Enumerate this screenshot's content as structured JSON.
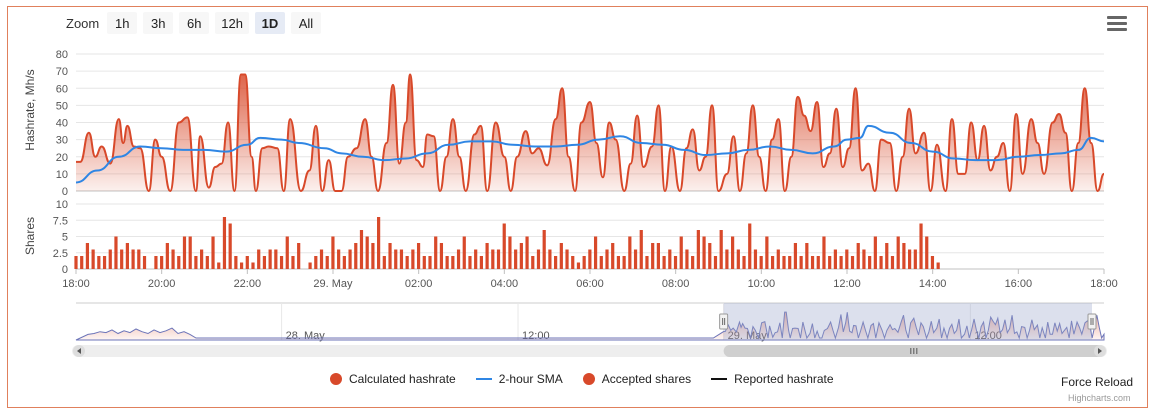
{
  "zoom": {
    "label": "Zoom",
    "buttons": [
      "1h",
      "3h",
      "6h",
      "12h",
      "1D",
      "All"
    ],
    "active": "1D"
  },
  "legend": [
    {
      "name": "Calculated hashrate",
      "marker": "dot",
      "color": "#d8492a"
    },
    {
      "name": "2-hour SMA",
      "marker": "line",
      "color": "#2f86e4"
    },
    {
      "name": "Accepted shares",
      "marker": "dot",
      "color": "#d8492a"
    },
    {
      "name": "Reported hashrate",
      "marker": "line",
      "color": "#111111"
    }
  ],
  "force_reload": "Force Reload",
  "credits": "Highcharts.com",
  "colors": {
    "hashrate": "#d8492a",
    "sma": "#2f86e4",
    "shares": "#d8492a",
    "navigator_fill": "#9aa6cc",
    "navigator_line": "#6c74b8",
    "grid": "#e6e6e6",
    "frame": "#e0805c"
  },
  "chart_data": [
    {
      "type": "area",
      "ylabel": "Hashrate, Mh/s",
      "ylim": [
        0,
        80
      ],
      "yticks": [
        "0",
        "10",
        "20",
        "30",
        "40",
        "50",
        "60",
        "70",
        "80"
      ],
      "grid": true,
      "x_range": [
        18,
        42
      ],
      "xticks": [
        {
          "x": 18,
          "label": "18:00"
        },
        {
          "x": 20,
          "label": "20:00"
        },
        {
          "x": 22,
          "label": "22:00"
        },
        {
          "x": 24,
          "label": "29. May"
        },
        {
          "x": 26,
          "label": "02:00"
        },
        {
          "x": 28,
          "label": "04:00"
        },
        {
          "x": 30,
          "label": "06:00"
        },
        {
          "x": 32,
          "label": "08:00"
        },
        {
          "x": 34,
          "label": "10:00"
        },
        {
          "x": 36,
          "label": "12:00"
        },
        {
          "x": 38,
          "label": "14:00"
        },
        {
          "x": 40,
          "label": "16:00"
        },
        {
          "x": 42,
          "label": "18:00"
        }
      ],
      "series": [
        {
          "name": "Calculated hashrate",
          "x": [
            18.0,
            18.1,
            18.3,
            18.45,
            18.6,
            18.8,
            19.0,
            19.1,
            19.2,
            19.35,
            19.5,
            19.7,
            19.85,
            20.0,
            20.2,
            20.4,
            20.6,
            20.8,
            20.9,
            21.1,
            21.25,
            21.4,
            21.55,
            21.7,
            21.85,
            21.95,
            22.1,
            22.2,
            22.35,
            22.5,
            22.7,
            22.85,
            23.0,
            23.25,
            23.45,
            23.6,
            23.75,
            23.9,
            24.05,
            24.2,
            24.35,
            24.55,
            24.75,
            24.9,
            25.05,
            25.25,
            25.4,
            25.55,
            25.7,
            25.8,
            25.95,
            26.1,
            26.2,
            26.35,
            26.5,
            26.65,
            26.8,
            26.95,
            27.1,
            27.3,
            27.45,
            27.6,
            27.8,
            28.0,
            28.15,
            28.3,
            28.5,
            28.65,
            28.8,
            29.0,
            29.2,
            29.35,
            29.5,
            29.65,
            29.8,
            30.0,
            30.15,
            30.3,
            30.45,
            30.6,
            30.8,
            30.95,
            31.1,
            31.25,
            31.45,
            31.6,
            31.75,
            31.9,
            32.1,
            32.25,
            32.4,
            32.55,
            32.7,
            32.85,
            33.0,
            33.2,
            33.35,
            33.5,
            33.65,
            33.8,
            33.95,
            34.1,
            34.25,
            34.4,
            34.55,
            34.7,
            34.85,
            35.0,
            35.15,
            35.3,
            35.45,
            35.6,
            35.75,
            35.9,
            36.05,
            36.2,
            36.35,
            36.5,
            36.65,
            36.8,
            37.0,
            37.15,
            37.3,
            37.45,
            37.6,
            37.8,
            37.95,
            38.1,
            38.3,
            38.45,
            38.6,
            38.75,
            38.9,
            39.05,
            39.2,
            39.35,
            39.5,
            39.65,
            39.8,
            39.95,
            40.1,
            40.3,
            40.45,
            40.6,
            40.8,
            40.95,
            41.1,
            41.25,
            41.4,
            41.55,
            41.7,
            41.85,
            42.0
          ],
          "values": [
            17,
            17,
            34,
            20,
            26,
            16,
            42,
            28,
            38,
            26,
            25,
            0,
            30,
            20,
            0,
            40,
            43,
            0,
            32,
            2,
            14,
            16,
            40,
            0,
            68,
            68,
            20,
            0,
            25,
            26,
            25,
            0,
            42,
            0,
            12,
            38,
            0,
            18,
            0,
            0,
            20,
            25,
            42,
            20,
            0,
            28,
            62,
            16,
            40,
            68,
            18,
            14,
            33,
            32,
            0,
            20,
            42,
            20,
            0,
            33,
            38,
            0,
            40,
            20,
            0,
            20,
            35,
            22,
            25,
            15,
            42,
            60,
            20,
            0,
            40,
            52,
            28,
            8,
            40,
            30,
            0,
            16,
            44,
            14,
            26,
            50,
            0,
            26,
            0,
            25,
            36,
            12,
            20,
            50,
            0,
            10,
            32,
            0,
            22,
            50,
            20,
            0,
            30,
            42,
            0,
            20,
            55,
            44,
            35,
            52,
            14,
            22,
            48,
            14,
            25,
            60,
            12,
            16,
            0,
            30,
            28,
            0,
            20,
            48,
            22,
            34,
            0,
            27,
            0,
            42,
            10,
            10,
            40,
            18,
            38,
            12,
            20,
            28,
            0,
            45,
            10,
            42,
            28,
            10,
            40,
            45,
            34,
            0,
            28,
            60,
            28,
            0,
            10
          ]
        },
        {
          "name": "2-hour SMA",
          "x": [
            18.0,
            18.5,
            19.0,
            19.5,
            20.0,
            20.5,
            21.0,
            21.5,
            22.0,
            22.3,
            22.8,
            23.2,
            23.8,
            24.2,
            24.7,
            25.2,
            25.7,
            26.2,
            26.7,
            27.2,
            27.7,
            28.2,
            28.7,
            29.2,
            29.7,
            30.2,
            30.7,
            31.2,
            31.7,
            32.2,
            32.7,
            33.2,
            33.7,
            34.2,
            34.7,
            35.2,
            35.7,
            36.0,
            36.3,
            36.5,
            37.0,
            37.5,
            38.0,
            38.5,
            39.0,
            39.5,
            40.0,
            40.5,
            41.0,
            41.4,
            41.7,
            42.0
          ],
          "values": [
            5,
            12,
            20,
            26,
            25,
            24,
            24,
            23,
            27,
            31,
            30,
            28,
            25,
            22,
            20,
            18,
            19,
            22,
            27,
            29,
            29,
            27,
            26,
            26,
            27,
            30,
            32,
            28,
            27,
            24,
            21,
            22,
            24,
            26,
            24,
            22,
            26,
            30,
            31,
            38,
            34,
            28,
            23,
            19,
            18,
            18,
            20,
            21,
            22,
            24,
            31,
            29
          ]
        }
      ]
    },
    {
      "type": "bar",
      "ylabel": "Shares",
      "ylim": [
        0,
        10
      ],
      "yticks": [
        "0",
        "2.5",
        "5",
        "7.5",
        "10"
      ],
      "grid": true,
      "series": [
        {
          "name": "Accepted shares",
          "x_start": 18.0,
          "x_step": 0.1333,
          "values": [
            2,
            2,
            4,
            3,
            2,
            2,
            3,
            5,
            3,
            4,
            3,
            3,
            2,
            0,
            2,
            2,
            4,
            3,
            2,
            5,
            5,
            2,
            3,
            2,
            5,
            1,
            8,
            7,
            2,
            1,
            2,
            1,
            3,
            2,
            3,
            3,
            2,
            5,
            2,
            4,
            0,
            1,
            2,
            3,
            2,
            5,
            3,
            2,
            3,
            4,
            6,
            5,
            4,
            8,
            2,
            4,
            3,
            3,
            2,
            3,
            4,
            2,
            2,
            5,
            4,
            2,
            2,
            3,
            5,
            2,
            3,
            2,
            4,
            3,
            3,
            7,
            5,
            3,
            4,
            5,
            2,
            3,
            6,
            3,
            2,
            4,
            3,
            2,
            1,
            2,
            3,
            5,
            2,
            3,
            4,
            2,
            2,
            5,
            3,
            6,
            2,
            4,
            4,
            2,
            3,
            2,
            5,
            3,
            2,
            6,
            5,
            4,
            2,
            6,
            3,
            5,
            3,
            2,
            7,
            3,
            2,
            5,
            2,
            3,
            2,
            2,
            4,
            2,
            4,
            2,
            2,
            5,
            2,
            3,
            2,
            3,
            2,
            4,
            3,
            2,
            5,
            2,
            4,
            2,
            5,
            4,
            3,
            3,
            7,
            5,
            2,
            1
          ]
        }
      ]
    },
    {
      "type": "area",
      "role": "navigator",
      "xticks": [
        "28. May",
        "12:00",
        "29. May",
        "12:00"
      ],
      "selected_range": [
        0.63,
        1.0
      ]
    }
  ]
}
